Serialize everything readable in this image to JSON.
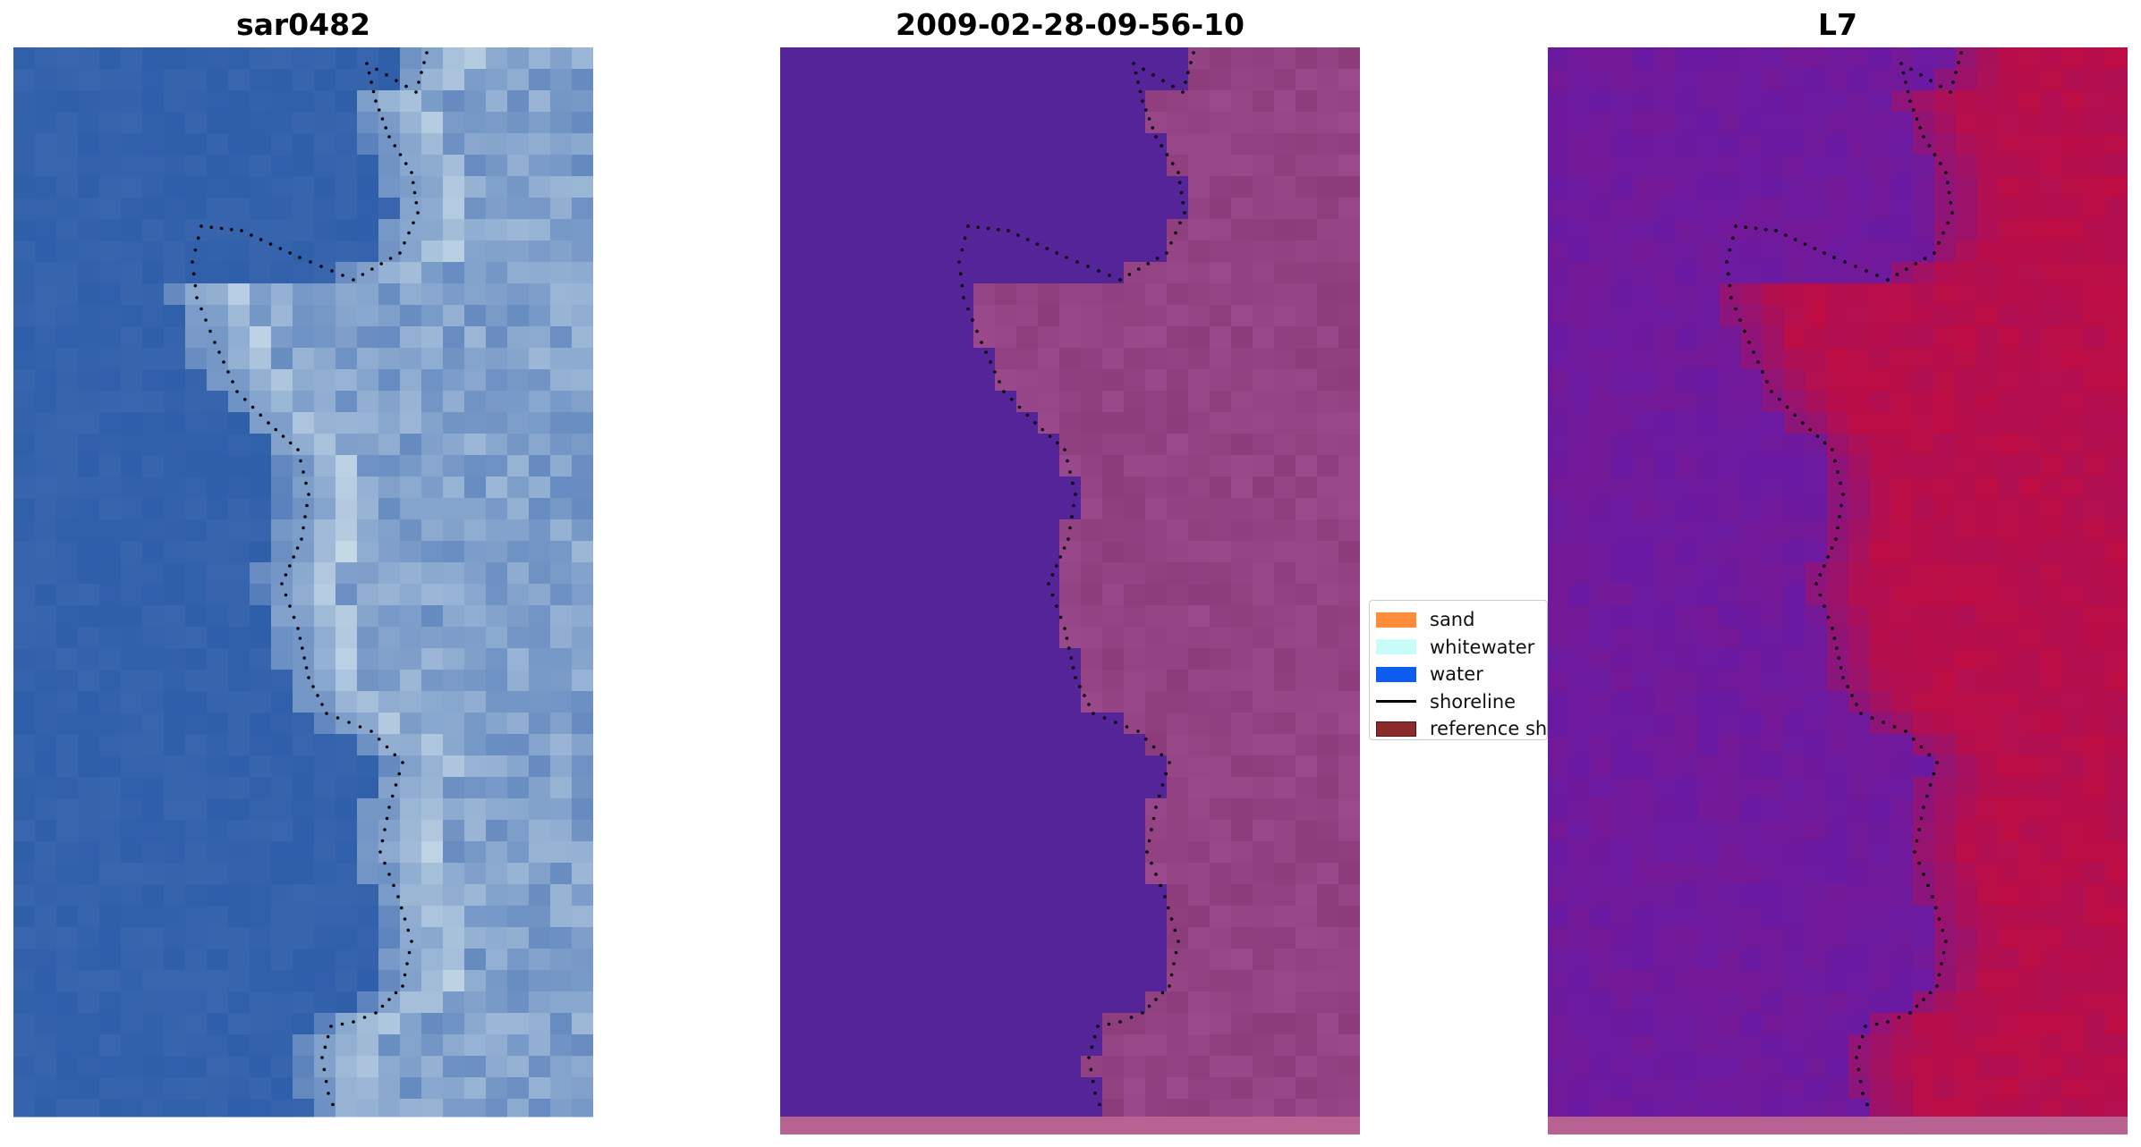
{
  "titles": {
    "left": "sar0482",
    "center": "2009-02-28-09-56-10",
    "right": "L7"
  },
  "legend": {
    "items": [
      {
        "label": "sand",
        "color": "#ff8c3a",
        "kind": "patch",
        "icon": "sand-swatch"
      },
      {
        "label": "whitewater",
        "color": "#c8fcf8",
        "kind": "patch",
        "icon": "whitewater-swatch"
      },
      {
        "label": "water",
        "color": "#0c5cf0",
        "kind": "patch",
        "icon": "water-swatch"
      },
      {
        "label": "shoreline",
        "color": "#000000",
        "kind": "line",
        "icon": "shoreline-swatch"
      },
      {
        "label": "reference shoreline",
        "color": "#8b2a2a",
        "kind": "patch",
        "icon": "reference-shoreline-swatch"
      }
    ]
  },
  "colors": {
    "rgb_water": "#2a5aa8",
    "rgb_foam": "#c8dbe8",
    "class_water": "#542498",
    "class_land": "#9a4a8c",
    "index_low": "#6a1aa2",
    "index_high": "#c40c3c",
    "shoreline": "#000000"
  }
}
